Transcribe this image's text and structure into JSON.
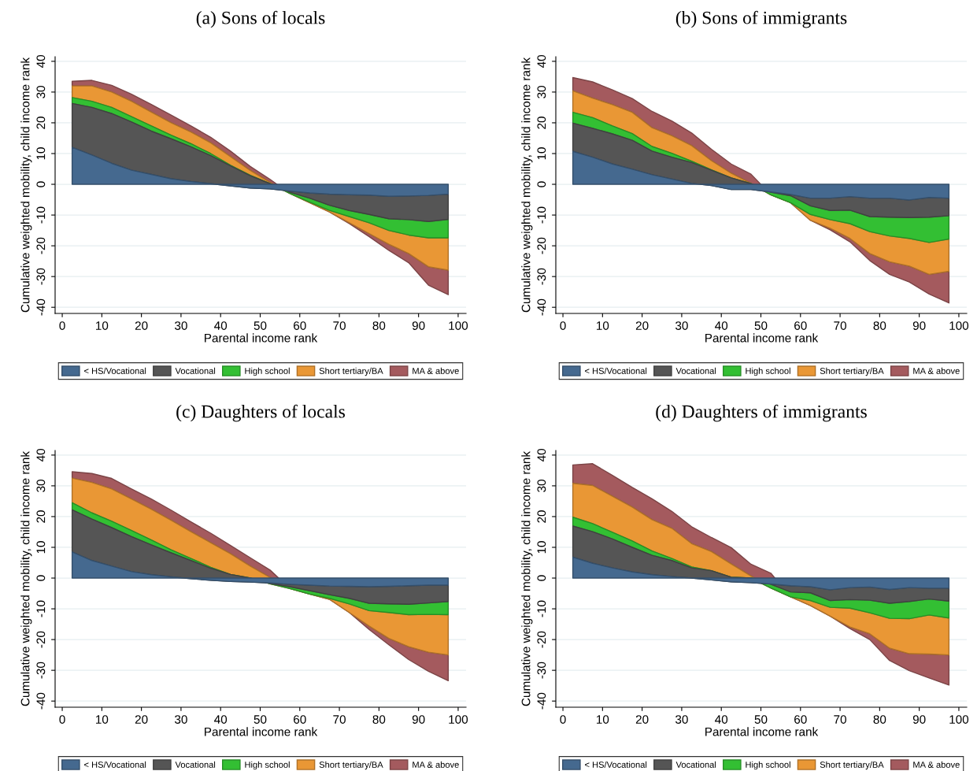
{
  "chart_data": [
    {
      "type": "area",
      "stacked": true,
      "title": "(a) Sons of locals",
      "xlabel": "Parental income rank",
      "ylabel": "Cumulative weighted mobility, child income rank",
      "grid": "y",
      "legend": "bottom",
      "x": [
        2.5,
        7.5,
        12.5,
        17.5,
        22.5,
        27.5,
        32.5,
        37.5,
        42.5,
        47.5,
        52.5,
        57.5,
        62.5,
        67.5,
        72.5,
        77.5,
        82.5,
        87.5,
        92.5,
        97.5
      ],
      "xlim": [
        -1.8,
        102
      ],
      "ylim": [
        -42,
        41.5
      ],
      "xticks": [
        0,
        10,
        20,
        30,
        40,
        50,
        60,
        70,
        80,
        90,
        100
      ],
      "yticks": [
        -40,
        -30,
        -20,
        -10,
        0,
        10,
        20,
        30,
        40
      ],
      "series": [
        {
          "name": "< HS/Vocational",
          "color": "#45698f",
          "values": [
            12,
            9.5,
            6.8,
            4.6,
            3.2,
            1.8,
            0.9,
            0.2,
            -0.5,
            -1.2,
            -1.5,
            -2.2,
            -2.8,
            -3.2,
            -3.4,
            -3.5,
            -3.9,
            -3.8,
            -3.6,
            -3.2
          ]
        },
        {
          "name": "Vocational",
          "color": "#555555",
          "values": [
            14.3,
            15.5,
            16.2,
            15.7,
            14.1,
            13,
            11.3,
            9.1,
            6.5,
            4,
            1.7,
            -0.4,
            -1.7,
            -3.6,
            -5.1,
            -6.3,
            -7.3,
            -7.7,
            -8.5,
            -8.2
          ]
        },
        {
          "name": "High school",
          "color": "#33bf33",
          "values": [
            1.9,
            2,
            2,
            1.7,
            1.7,
            1.2,
            1,
            0.7,
            0.2,
            0.1,
            0,
            -0.4,
            -1.3,
            -1.7,
            -2,
            -2.7,
            -3.8,
            -5,
            -5.3,
            -6
          ]
        },
        {
          "name": "Short tertiary/BA",
          "color": "#e99735",
          "values": [
            3.8,
            5,
            5,
            5,
            4.5,
            4,
            3.8,
            3.5,
            2.8,
            1.6,
            0.4,
            0,
            -0.2,
            -0.5,
            -2,
            -3.5,
            -4.5,
            -6,
            -9.4,
            -10.5
          ]
        },
        {
          "name": "MA & above",
          "color": "#a45a5e",
          "values": [
            1.5,
            1.8,
            2.2,
            2.3,
            2.5,
            2.5,
            2,
            1.8,
            1.8,
            1.3,
            1,
            0,
            0,
            0,
            -0.3,
            -1,
            -2,
            -3,
            -6,
            -8
          ]
        }
      ]
    },
    {
      "type": "area",
      "stacked": true,
      "title": "(b) Sons of immigrants",
      "xlabel": "Parental income rank",
      "ylabel": "Cumulative weighted mobility, child income rank",
      "grid": "y",
      "legend": "bottom",
      "x": [
        2.5,
        7.5,
        12.5,
        17.5,
        22.5,
        27.5,
        32.5,
        37.5,
        42.5,
        47.5,
        52.5,
        57.5,
        62.5,
        67.5,
        72.5,
        77.5,
        82.5,
        87.5,
        92.5,
        97.5
      ],
      "xlim": [
        -1.8,
        102
      ],
      "ylim": [
        -42,
        41.5
      ],
      "xticks": [
        0,
        10,
        20,
        30,
        40,
        50,
        60,
        70,
        80,
        90,
        100
      ],
      "yticks": [
        -40,
        -30,
        -20,
        -10,
        0,
        10,
        20,
        30,
        40
      ],
      "series": [
        {
          "name": "< HS/Vocational",
          "color": "#45698f",
          "values": [
            10.7,
            8.8,
            6.6,
            4.9,
            3.1,
            1.7,
            0.3,
            -0.4,
            -1.7,
            -1.7,
            -2.5,
            -3.3,
            -4.5,
            -4.5,
            -4,
            -4.5,
            -4.5,
            -5.1,
            -4.3,
            -4.5
          ]
        },
        {
          "name": "Vocational",
          "color": "#555555",
          "values": [
            9.2,
            9.4,
            9.8,
            9.4,
            7.7,
            7.1,
            6.8,
            5,
            3.8,
            1.9,
            -0.1,
            -0.4,
            -2.5,
            -4,
            -4.4,
            -6,
            -6.2,
            -5.7,
            -6.4,
            -5.7
          ]
        },
        {
          "name": "High school",
          "color": "#33bf33",
          "values": [
            3.5,
            3.5,
            2.6,
            2.2,
            1.5,
            1.3,
            0.4,
            0.1,
            0,
            0,
            -0.8,
            -2.3,
            -2.8,
            -3,
            -4.4,
            -4.9,
            -6.1,
            -6.8,
            -8.2,
            -7.6
          ]
        },
        {
          "name": "Short tertiary/BA",
          "color": "#e99735",
          "values": [
            7,
            6.3,
            6.9,
            6.9,
            6.1,
            5.7,
            5.1,
            3,
            1.5,
            0.1,
            0,
            0,
            -1.9,
            -2.8,
            -4.8,
            -7.1,
            -8.4,
            -9,
            -10.4,
            -10.5
          ]
        },
        {
          "name": "MA & above",
          "color": "#a45a5e",
          "values": [
            4.3,
            5.3,
            4.8,
            4.5,
            5.3,
            4.8,
            4.1,
            3.7,
            3,
            3,
            0,
            0,
            0,
            -0.5,
            -1.1,
            -2.3,
            -4.1,
            -5.2,
            -6.4,
            -10.3
          ]
        }
      ]
    },
    {
      "type": "area",
      "stacked": true,
      "title": "(c) Daughters of locals",
      "xlabel": "Parental income rank",
      "ylabel": "Cumulative weighted mobility, child income rank",
      "grid": "y",
      "legend": "bottom",
      "x": [
        2.5,
        7.5,
        12.5,
        17.5,
        22.5,
        27.5,
        32.5,
        37.5,
        42.5,
        47.5,
        52.5,
        57.5,
        62.5,
        67.5,
        72.5,
        77.5,
        82.5,
        87.5,
        92.5,
        97.5
      ],
      "xlim": [
        -1.8,
        102
      ],
      "ylim": [
        -42,
        41.5
      ],
      "xticks": [
        0,
        10,
        20,
        30,
        40,
        50,
        60,
        70,
        80,
        90,
        100
      ],
      "yticks": [
        -40,
        -30,
        -20,
        -10,
        0,
        10,
        20,
        30,
        40
      ],
      "series": [
        {
          "name": "< HS/Vocational",
          "color": "#45698f",
          "values": [
            8.5,
            5.7,
            3.9,
            2.1,
            1.1,
            0.4,
            -0.2,
            -0.7,
            -1.1,
            -1.3,
            -1.6,
            -2,
            -2.3,
            -2.6,
            -2.7,
            -2.8,
            -2.7,
            -2.5,
            -2.3,
            -2.3
          ]
        },
        {
          "name": "Vocational",
          "color": "#555555",
          "values": [
            13.7,
            13.5,
            12.5,
            11.4,
            9.7,
            7.8,
            5.9,
            3.9,
            2.3,
            1.3,
            -0.2,
            -0.8,
            -1.8,
            -2.8,
            -3.9,
            -5.4,
            -5.7,
            -6,
            -5.8,
            -5.3
          ]
        },
        {
          "name": "High school",
          "color": "#33bf33",
          "values": [
            2.3,
            2,
            2.1,
            2,
            1.6,
            1,
            0.7,
            0.3,
            0,
            0,
            -0.1,
            -0.6,
            -1.1,
            -1.2,
            -1.8,
            -2.4,
            -2.8,
            -3.4,
            -3.7,
            -4.3
          ]
        },
        {
          "name": "Short tertiary/BA",
          "color": "#e99735",
          "values": [
            8,
            9.9,
            10.5,
            10.2,
            10,
            9.6,
            8.7,
            8,
            6.7,
            3.9,
            2.1,
            0,
            0,
            -0.3,
            -2.8,
            -5,
            -8.4,
            -10.4,
            -12.3,
            -13.1
          ]
        },
        {
          "name": "MA & above",
          "color": "#a45a5e",
          "values": [
            2.1,
            2.9,
            3.4,
            3.3,
            3.3,
            3.3,
            3.2,
            3.1,
            2.7,
            2.7,
            2.4,
            0,
            0,
            0,
            0,
            -1.1,
            -2.1,
            -4.2,
            -6.2,
            -8.4
          ]
        }
      ]
    },
    {
      "type": "area",
      "stacked": true,
      "title": "(d) Daughters of immigrants",
      "xlabel": "Parental income rank",
      "ylabel": "Cumulative weighted mobility, child income rank",
      "grid": "y",
      "legend": "bottom",
      "x": [
        2.5,
        7.5,
        12.5,
        17.5,
        22.5,
        27.5,
        32.5,
        37.5,
        42.5,
        47.5,
        52.5,
        57.5,
        62.5,
        67.5,
        72.5,
        77.5,
        82.5,
        87.5,
        92.5,
        97.5
      ],
      "xlim": [
        -1.8,
        102
      ],
      "ylim": [
        -42,
        41.5
      ],
      "xticks": [
        0,
        10,
        20,
        30,
        40,
        50,
        60,
        70,
        80,
        90,
        100
      ],
      "yticks": [
        -40,
        -30,
        -20,
        -10,
        0,
        10,
        20,
        30,
        40
      ],
      "series": [
        {
          "name": "< HS/Vocational",
          "color": "#45698f",
          "values": [
            6.8,
            4.8,
            3.3,
            2,
            1.1,
            0.5,
            0,
            -0.6,
            -1.2,
            -1.5,
            -1.9,
            -2.5,
            -2.8,
            -3.8,
            -3.1,
            -2.9,
            -3.7,
            -3.1,
            -3.3,
            -3.3
          ]
        },
        {
          "name": "Vocational",
          "color": "#555555",
          "values": [
            10.1,
            10.3,
            9.4,
            8,
            6.3,
            5.2,
            3.3,
            3,
            1.5,
            1.5,
            -0.1,
            -2,
            -2,
            -3.5,
            -3.9,
            -4.3,
            -4.5,
            -4.5,
            -3.5,
            -4.2
          ]
        },
        {
          "name": "High school",
          "color": "#33bf33",
          "values": [
            2.9,
            2.6,
            2.2,
            2.1,
            1.4,
            0.7,
            0.3,
            0,
            0,
            0,
            -1.2,
            -1.6,
            -2.5,
            -2.2,
            -2.8,
            -4.1,
            -4.9,
            -5.6,
            -5.2,
            -5.5
          ]
        },
        {
          "name": "Short tertiary/BA",
          "color": "#e99735",
          "values": [
            11,
            12.4,
            11.7,
            11,
            10.2,
            9.8,
            7.6,
            6.2,
            4.3,
            0.7,
            0,
            0,
            -1.6,
            -2.9,
            -6.1,
            -6.8,
            -9.7,
            -11.4,
            -12.7,
            -12
          ]
        },
        {
          "name": "MA & above",
          "color": "#a45a5e",
          "values": [
            6,
            7.1,
            6.8,
            6.4,
            6.8,
            5.5,
            5.5,
            4.6,
            5.3,
            3.8,
            4.8,
            0,
            0,
            0,
            -0.5,
            -1.9,
            -4,
            -5.5,
            -7.8,
            -9.8
          ]
        }
      ]
    }
  ]
}
